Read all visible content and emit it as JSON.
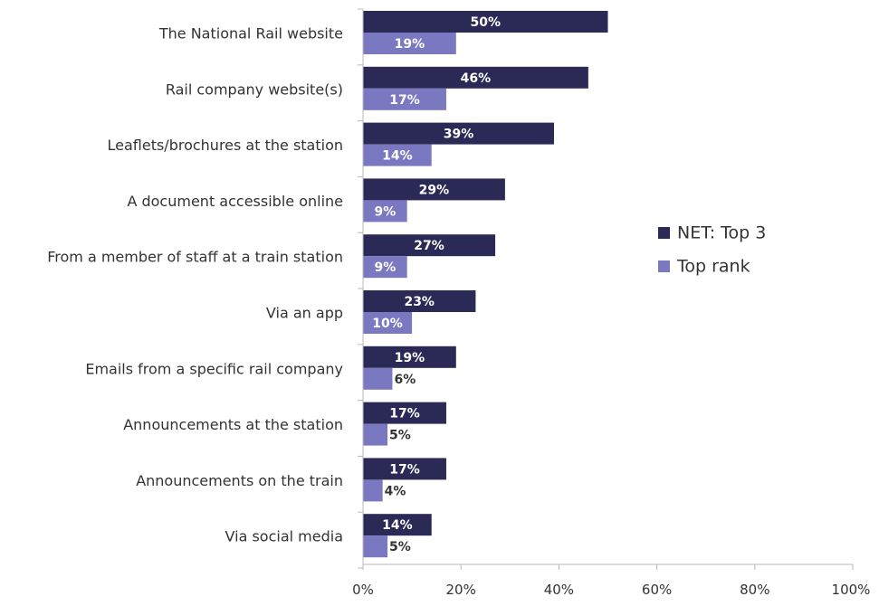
{
  "chart_data": {
    "type": "bar",
    "orientation": "horizontal",
    "categories": [
      "The National Rail website",
      "Rail company website(s)",
      "Leaflets/brochures at the station",
      "A document accessible online",
      "From a member of staff at a train station",
      "Via an app",
      "Emails from a specific rail company",
      "Announcements at the station",
      "Announcements on the train",
      "Via social media"
    ],
    "series": [
      {
        "name": "NET: Top 3",
        "color": "#2b2a56",
        "values": [
          50,
          46,
          39,
          29,
          27,
          23,
          19,
          17,
          17,
          14
        ],
        "labels": [
          "50%",
          "46%",
          "39%",
          "29%",
          "27%",
          "23%",
          "19%",
          "17%",
          "17%",
          "14%"
        ]
      },
      {
        "name": "Top rank",
        "color": "#7b78c2",
        "values": [
          19,
          17,
          14,
          9,
          9,
          10,
          6,
          5,
          4,
          5
        ],
        "labels": [
          "19%",
          "17%",
          "14%",
          "9%",
          "9%",
          "10%",
          "6%",
          "5%",
          "4%",
          "5%"
        ]
      }
    ],
    "xlim": [
      0,
      100
    ],
    "xticks": [
      0,
      20,
      40,
      60,
      80,
      100
    ],
    "xtick_labels": [
      "0%",
      "20%",
      "40%",
      "60%",
      "80%",
      "100%"
    ],
    "title": "",
    "xlabel": "",
    "ylabel": "",
    "grid": false,
    "legend_position": "right"
  }
}
